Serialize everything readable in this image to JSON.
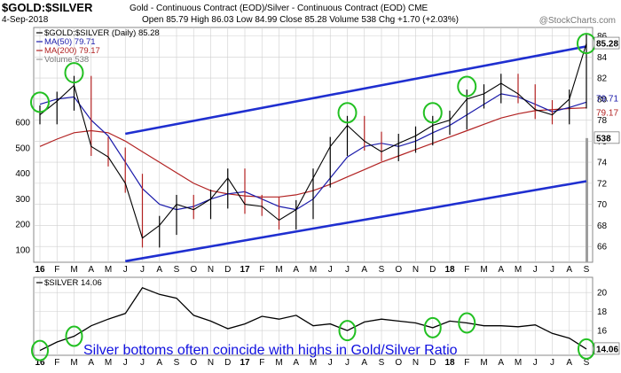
{
  "header": {
    "title": "$GOLD:$SILVER",
    "subtitle": "Gold - Continuous Contract (EOD)/Silver - Continuous Contract (EOD) CME",
    "date": "4-Sep-2018",
    "ohlc": "Open 85.79  High 86.03  Low 84.99  Close 85.28  Volume 538  Chg +1.70 (+2.03%)",
    "brand": "@StockCharts.com"
  },
  "colors": {
    "price": "#000000",
    "ma50": "#1a1aaa",
    "ma200": "#b22222",
    "trendline": "#1f2fd0",
    "circle": "#22c022",
    "annotation": "#1010e0",
    "grid": "#cfcfcf",
    "volume": "#9e9e9e"
  },
  "chart_data": [
    {
      "type": "candlestick",
      "legend": [
        {
          "label": "$GOLD:$SILVER (Daily) 85.28",
          "color": "#000000"
        },
        {
          "label": "MA(50) 79.71",
          "color": "#1a1aaa"
        },
        {
          "label": "MA(200) 79.17",
          "color": "#b22222"
        },
        {
          "label": "Volume 538",
          "color": "#9e9e9e"
        }
      ],
      "x_ticks": [
        "16",
        "F",
        "M",
        "A",
        "M",
        "J",
        "J",
        "A",
        "S",
        "O",
        "N",
        "D",
        "17",
        "F",
        "M",
        "A",
        "M",
        "J",
        "J",
        "A",
        "S",
        "O",
        "N",
        "D",
        "18",
        "F",
        "M",
        "A",
        "M",
        "J",
        "J",
        "A",
        "S"
      ],
      "y_ticks": [
        66,
        68,
        70,
        72,
        74,
        76,
        78,
        80,
        82,
        84,
        86
      ],
      "ylim": [
        64.5,
        86.8
      ],
      "volume_ticks": [
        100,
        200,
        300,
        400,
        500,
        600
      ],
      "last_close_label": "85.28",
      "ma50_label": "79.71",
      "ma200_label": "79.17",
      "volume_label": "538",
      "series": [
        {
          "name": "$GOLD:$SILVER",
          "x": [
            "2016-01",
            "2016-02",
            "2016-03",
            "2016-04",
            "2016-05",
            "2016-06",
            "2016-07",
            "2016-08",
            "2016-09",
            "2016-10",
            "2016-11",
            "2016-12",
            "2017-01",
            "2017-02",
            "2017-03",
            "2017-04",
            "2017-05",
            "2017-06",
            "2017-07",
            "2017-08",
            "2017-09",
            "2017-10",
            "2017-11",
            "2017-12",
            "2018-01",
            "2018-02",
            "2018-03",
            "2018-04",
            "2018-05",
            "2018-06",
            "2018-07",
            "2018-08",
            "2018-09"
          ],
          "values": [
            78.5,
            79.8,
            81.3,
            75.5,
            74.5,
            72.0,
            66.8,
            68.0,
            70.0,
            69.5,
            70.5,
            72.5,
            70.0,
            69.8,
            68.5,
            69.5,
            72.5,
            75.5,
            77.5,
            76.0,
            75.0,
            75.8,
            76.5,
            77.5,
            78.0,
            80.0,
            80.5,
            81.5,
            80.5,
            79.0,
            78.5,
            80.0,
            85.28
          ]
        },
        {
          "name": "MA(50)",
          "values": [
            79.5,
            80.0,
            80.2,
            78.0,
            76.5,
            74.0,
            71.5,
            70.0,
            69.5,
            69.8,
            70.5,
            71.0,
            71.2,
            70.5,
            69.8,
            69.5,
            70.5,
            72.5,
            74.5,
            75.5,
            75.8,
            75.5,
            76.0,
            76.8,
            77.5,
            78.5,
            79.5,
            80.5,
            80.2,
            79.5,
            78.8,
            79.2,
            79.71
          ]
        },
        {
          "name": "MA(200)",
          "values": [
            75.5,
            76.2,
            76.8,
            77.0,
            76.8,
            76.0,
            75.0,
            74.0,
            73.0,
            72.0,
            71.3,
            71.0,
            70.8,
            70.7,
            70.7,
            70.9,
            71.3,
            71.9,
            72.6,
            73.3,
            74.0,
            74.6,
            75.2,
            75.8,
            76.4,
            77.0,
            77.6,
            78.2,
            78.6,
            78.9,
            79.0,
            79.1,
            79.17
          ]
        }
      ],
      "trendlines": [
        {
          "name": "upper",
          "from": [
            "2016-06",
            76.7
          ],
          "to": [
            "2018-09",
            85.0
          ]
        },
        {
          "name": "lower",
          "from": [
            "2016-06",
            64.6
          ],
          "to": [
            "2018-09",
            72.2
          ]
        }
      ],
      "highlight_circles": [
        "2016-01",
        "2016-03",
        "2017-07",
        "2017-12",
        "2018-02",
        "2018-09"
      ]
    },
    {
      "type": "line",
      "legend": [
        {
          "label": "$SILVER 14.06",
          "color": "#000000"
        }
      ],
      "y_ticks": [
        16,
        18,
        20
      ],
      "ylim": [
        13.4,
        21.6
      ],
      "last_value_label": "14.06",
      "series": [
        {
          "name": "$SILVER",
          "values": [
            13.9,
            14.8,
            15.4,
            16.5,
            17.2,
            17.8,
            20.5,
            19.8,
            19.4,
            17.6,
            17.0,
            16.2,
            16.7,
            17.5,
            17.2,
            17.6,
            16.5,
            16.7,
            16.0,
            16.9,
            17.2,
            17.0,
            16.8,
            16.3,
            17.0,
            16.8,
            16.5,
            16.5,
            16.4,
            16.6,
            15.7,
            15.2,
            14.06
          ]
        }
      ],
      "highlight_circles": [
        "2016-01",
        "2016-03",
        "2017-07",
        "2017-12",
        "2018-02",
        "2018-09"
      ],
      "annotation": "Silver bottoms often coincide with highs in Gold/Silver Ratio"
    }
  ]
}
